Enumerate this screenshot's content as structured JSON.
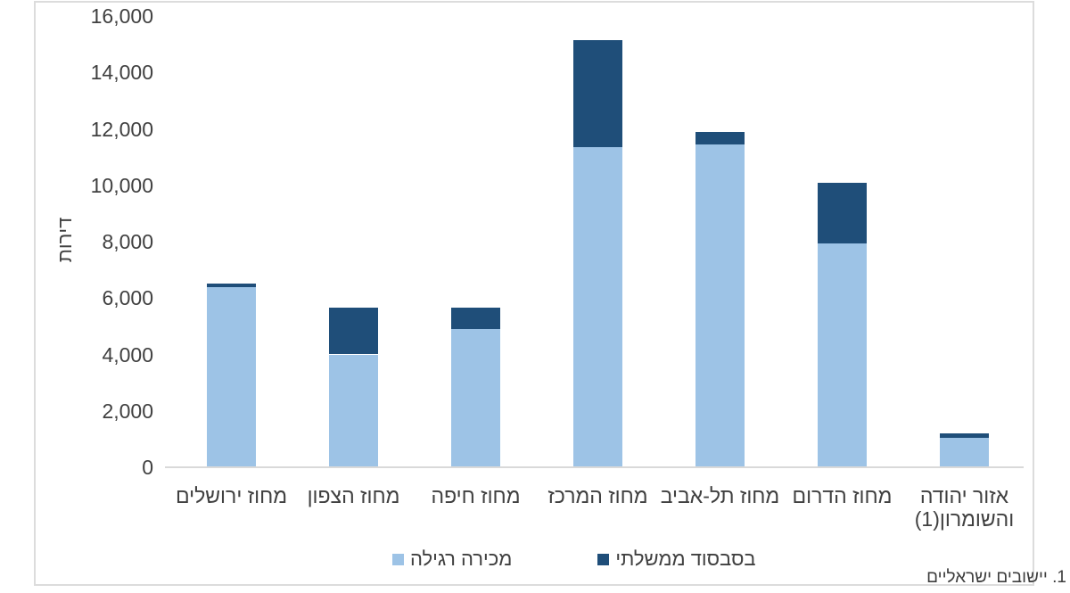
{
  "chart_data": {
    "type": "bar",
    "stacked": true,
    "title": "",
    "ylabel": "דירות",
    "xlabel": "",
    "ylim": [
      0,
      16000
    ],
    "grid": false,
    "legend_position": "bottom",
    "y_ticks": [
      {
        "value": 0,
        "label": "0"
      },
      {
        "value": 2000,
        "label": "2,000"
      },
      {
        "value": 4000,
        "label": "4,000"
      },
      {
        "value": 6000,
        "label": "6,000"
      },
      {
        "value": 8000,
        "label": "8,000"
      },
      {
        "value": 10000,
        "label": "10,000"
      },
      {
        "value": 12000,
        "label": "12,000"
      },
      {
        "value": 14000,
        "label": "14,000"
      },
      {
        "value": 16000,
        "label": "16,000"
      }
    ],
    "categories": [
      "מחוז ירושלים",
      "מחוז הצפון",
      "מחוז חיפה",
      "מחוז המרכז",
      "מחוז תל-אביב",
      "מחוז הדרום",
      "אזור יהודה\nוהשומרון(1)"
    ],
    "series": [
      {
        "name": "מכירה רגילה",
        "color": "#9DC3E6",
        "values": [
          6400,
          4000,
          4900,
          11350,
          11450,
          7950,
          1050
        ]
      },
      {
        "name": "בסבסוד ממשלתי",
        "color": "#1F4E79",
        "values": [
          100,
          1650,
          750,
          3800,
          450,
          2150,
          150
        ]
      }
    ],
    "footnote": "1. יישובים ישראליים",
    "colors": {
      "axis_line": "#D9D9D9",
      "frame_border": "#DCDCDC",
      "text": "#404040"
    }
  }
}
